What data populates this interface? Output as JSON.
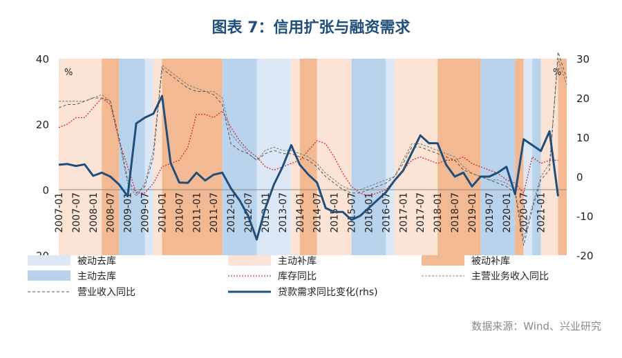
{
  "title": "图表 7：信用扩张与融资需求",
  "source": "数据来源：Wind、兴业研究",
  "colors": {
    "passive_destock": "#dce8f5",
    "active_restock": "#fbe3d6",
    "passive_restock": "#f3b992",
    "active_destock": "#b9d3ec",
    "inventory": "#d9282f",
    "main_revenue": "#7f7f7f",
    "op_revenue": "#555555",
    "loan": "#1f4e79"
  },
  "chart_data": {
    "type": "line",
    "left_unit": "%",
    "right_unit": "%",
    "ylim_left": [
      -20,
      40
    ],
    "ylim_right": [
      -20,
      30
    ],
    "y_ticks_left": [
      "40",
      "20",
      "0",
      "-20"
    ],
    "y_ticks_right": [
      "30",
      "20",
      "10",
      "0",
      "-10",
      "-20"
    ],
    "x_tick_labels": [
      "2007-01",
      "2007-07",
      "2008-01",
      "2008-07",
      "2009-01",
      "2009-07",
      "2010-01",
      "2010-07",
      "2011-01",
      "2011-07",
      "2012-01",
      "2012-07",
      "2013-01",
      "2013-07",
      "2014-01",
      "2014-07",
      "2015-01",
      "2015-07",
      "2016-01",
      "2016-07",
      "2017-01",
      "2017-07",
      "2018-01",
      "2018-07",
      "2019-01",
      "2019-07",
      "2020-01",
      "2020-07",
      "2021-01"
    ],
    "x_range_quarters": [
      0,
      59
    ],
    "regimes": [
      {
        "from": 0,
        "to": 5,
        "type": "active_restock"
      },
      {
        "from": 5,
        "to": 7,
        "type": "passive_restock"
      },
      {
        "from": 7,
        "to": 10,
        "type": "active_destock"
      },
      {
        "from": 10,
        "to": 11,
        "type": "passive_destock"
      },
      {
        "from": 11,
        "to": 12,
        "type": "active_restock"
      },
      {
        "from": 12,
        "to": 19,
        "type": "passive_restock"
      },
      {
        "from": 19,
        "to": 23,
        "type": "active_destock"
      },
      {
        "from": 23,
        "to": 27,
        "type": "passive_destock"
      },
      {
        "from": 27,
        "to": 28,
        "type": "active_restock"
      },
      {
        "from": 28,
        "to": 30,
        "type": "passive_restock"
      },
      {
        "from": 30,
        "to": 34,
        "type": "active_restock"
      },
      {
        "from": 34,
        "to": 38,
        "type": "active_destock"
      },
      {
        "from": 38,
        "to": 39,
        "type": "passive_destock"
      },
      {
        "from": 39,
        "to": 44,
        "type": "active_restock"
      },
      {
        "from": 44,
        "to": 49,
        "type": "passive_restock"
      },
      {
        "from": 49,
        "to": 53,
        "type": "active_destock"
      },
      {
        "from": 53,
        "to": 54,
        "type": "passive_restock"
      },
      {
        "from": 54,
        "to": 55,
        "type": "passive_destock"
      },
      {
        "from": 55,
        "to": 56,
        "type": "active_destock"
      },
      {
        "from": 56,
        "to": 58,
        "type": "active_restock"
      },
      {
        "from": 58,
        "to": 59,
        "type": "passive_restock"
      }
    ],
    "series": [
      {
        "name": "库存同比",
        "axis": "left",
        "style": "dotted",
        "color_key": "inventory",
        "points": [
          [
            0,
            19
          ],
          [
            1,
            20
          ],
          [
            2,
            22
          ],
          [
            3,
            22
          ],
          [
            4,
            25
          ],
          [
            5,
            28
          ],
          [
            6,
            26
          ],
          [
            7,
            15
          ],
          [
            8,
            7
          ],
          [
            9,
            -1
          ],
          [
            10,
            -1
          ],
          [
            11,
            2
          ],
          [
            12,
            7
          ],
          [
            13,
            8
          ],
          [
            14,
            9
          ],
          [
            15,
            13
          ],
          [
            16,
            23
          ],
          [
            17,
            23
          ],
          [
            18,
            22
          ],
          [
            19,
            24
          ],
          [
            20,
            19
          ],
          [
            21,
            15
          ],
          [
            22,
            12
          ],
          [
            23,
            10
          ],
          [
            24,
            7
          ],
          [
            25,
            6
          ],
          [
            26,
            7
          ],
          [
            27,
            8
          ],
          [
            28,
            9
          ],
          [
            29,
            12
          ],
          [
            30,
            15
          ],
          [
            31,
            14
          ],
          [
            32,
            10
          ],
          [
            33,
            5
          ],
          [
            34,
            1
          ],
          [
            35,
            -1
          ],
          [
            36,
            -2
          ],
          [
            37,
            -1
          ],
          [
            38,
            0
          ],
          [
            39,
            3
          ],
          [
            40,
            6
          ],
          [
            41,
            9
          ],
          [
            42,
            10
          ],
          [
            43,
            9
          ],
          [
            44,
            8
          ],
          [
            45,
            9
          ],
          [
            46,
            9
          ],
          [
            47,
            10
          ],
          [
            48,
            8
          ],
          [
            49,
            7
          ],
          [
            50,
            6
          ],
          [
            51,
            5
          ],
          [
            52,
            3
          ],
          [
            53,
            2
          ],
          [
            54,
            -1
          ],
          [
            55,
            10
          ],
          [
            56,
            8
          ],
          [
            57,
            9
          ],
          [
            58,
            9
          ]
        ]
      },
      {
        "name": "主营业务收入同比",
        "axis": "left",
        "style": "dashed-fine",
        "color_key": "main_revenue",
        "points": [
          [
            0,
            27
          ],
          [
            1,
            27
          ],
          [
            2,
            27
          ],
          [
            3,
            27
          ],
          [
            4,
            28
          ],
          [
            5,
            29
          ],
          [
            6,
            27
          ],
          [
            7,
            15
          ],
          [
            8,
            2
          ],
          [
            9,
            -2
          ],
          [
            10,
            2
          ],
          [
            11,
            12
          ],
          [
            12,
            38
          ],
          [
            13,
            36
          ],
          [
            14,
            34
          ],
          [
            15,
            32
          ],
          [
            16,
            31
          ],
          [
            17,
            30
          ],
          [
            18,
            30
          ],
          [
            19,
            28
          ],
          [
            20,
            17
          ],
          [
            21,
            14
          ],
          [
            22,
            11
          ],
          [
            23,
            9
          ],
          [
            24,
            12
          ],
          [
            25,
            13
          ],
          [
            26,
            12
          ],
          [
            27,
            12
          ],
          [
            28,
            11
          ],
          [
            29,
            10
          ],
          [
            30,
            8
          ],
          [
            31,
            5
          ],
          [
            32,
            3
          ],
          [
            33,
            1
          ],
          [
            34,
            0
          ],
          [
            35,
            0
          ],
          [
            36,
            1
          ],
          [
            37,
            2
          ],
          [
            38,
            3
          ],
          [
            39,
            4
          ],
          [
            40,
            9
          ],
          [
            41,
            14
          ],
          [
            42,
            14
          ],
          [
            43,
            13
          ],
          [
            44,
            12
          ],
          [
            45,
            11
          ],
          [
            46,
            10
          ],
          [
            47,
            7
          ],
          [
            48,
            5
          ],
          [
            49,
            4
          ],
          [
            50,
            3
          ],
          [
            51,
            3
          ],
          [
            52,
            2
          ],
          [
            53,
            0
          ],
          [
            54,
            -15
          ],
          [
            55,
            -5
          ],
          [
            56,
            4
          ],
          [
            57,
            8
          ],
          [
            58,
            40
          ],
          [
            59,
            32
          ]
        ]
      },
      {
        "name": "营业收入同比",
        "axis": "left",
        "style": "dashed",
        "color_key": "op_revenue",
        "points": [
          [
            0,
            25
          ],
          [
            1,
            26
          ],
          [
            2,
            26
          ],
          [
            3,
            27
          ],
          [
            4,
            28
          ],
          [
            5,
            28
          ],
          [
            6,
            27
          ],
          [
            7,
            16
          ],
          [
            8,
            3
          ],
          [
            9,
            -1
          ],
          [
            10,
            1
          ],
          [
            11,
            10
          ],
          [
            12,
            37
          ],
          [
            13,
            35
          ],
          [
            14,
            33
          ],
          [
            15,
            31
          ],
          [
            16,
            30
          ],
          [
            17,
            30
          ],
          [
            18,
            29
          ],
          [
            19,
            26
          ],
          [
            20,
            14
          ],
          [
            21,
            12
          ],
          [
            22,
            11
          ],
          [
            23,
            9
          ],
          [
            24,
            11
          ],
          [
            25,
            12
          ],
          [
            26,
            11
          ],
          [
            27,
            11
          ],
          [
            28,
            10
          ],
          [
            29,
            9
          ],
          [
            30,
            7
          ],
          [
            31,
            4
          ],
          [
            32,
            2
          ],
          [
            33,
            0
          ],
          [
            34,
            -1
          ],
          [
            35,
            -1
          ],
          [
            36,
            0
          ],
          [
            37,
            1
          ],
          [
            38,
            2
          ],
          [
            39,
            4
          ],
          [
            40,
            8
          ],
          [
            41,
            13
          ],
          [
            42,
            13
          ],
          [
            43,
            12
          ],
          [
            44,
            11
          ],
          [
            45,
            10
          ],
          [
            46,
            9
          ],
          [
            47,
            6
          ],
          [
            48,
            5
          ],
          [
            49,
            4
          ],
          [
            50,
            3
          ],
          [
            51,
            2
          ],
          [
            52,
            1
          ],
          [
            53,
            -1
          ],
          [
            54,
            -17
          ],
          [
            55,
            -6
          ],
          [
            56,
            3
          ],
          [
            57,
            6
          ],
          [
            58,
            42
          ],
          [
            59,
            34
          ]
        ]
      },
      {
        "name": "贷款需求同比变化(rhs)",
        "axis": "right",
        "style": "solid",
        "color_key": "loan",
        "points": [
          [
            0,
            3
          ],
          [
            1,
            3.2
          ],
          [
            2,
            2.7
          ],
          [
            3,
            3.1
          ],
          [
            4,
            0.2
          ],
          [
            5,
            1
          ],
          [
            6,
            0
          ],
          [
            7,
            -2
          ],
          [
            8,
            -5
          ],
          [
            9,
            13.5
          ],
          [
            10,
            15
          ],
          [
            11,
            16
          ],
          [
            12,
            20.5
          ],
          [
            13,
            3.5
          ],
          [
            14,
            -1.5
          ],
          [
            15,
            -1.6
          ],
          [
            16,
            1
          ],
          [
            17,
            -1
          ],
          [
            18,
            0.5
          ],
          [
            19,
            1
          ],
          [
            20,
            -3
          ],
          [
            21,
            -6
          ],
          [
            22,
            -10
          ],
          [
            23,
            -16
          ],
          [
            24,
            -8
          ],
          [
            25,
            -2
          ],
          [
            26,
            2.5
          ],
          [
            27,
            8
          ],
          [
            28,
            3
          ],
          [
            29,
            0.5
          ],
          [
            30,
            -1.5
          ],
          [
            31,
            -8
          ],
          [
            32,
            -9
          ],
          [
            33,
            -9
          ],
          [
            34,
            -11
          ],
          [
            35,
            -10
          ],
          [
            36,
            -8
          ],
          [
            37,
            -6
          ],
          [
            38,
            -4
          ],
          [
            39,
            -1
          ],
          [
            40,
            1.5
          ],
          [
            41,
            6
          ],
          [
            42,
            10.5
          ],
          [
            43,
            8.5
          ],
          [
            44,
            8.5
          ],
          [
            45,
            3
          ],
          [
            46,
            0
          ],
          [
            47,
            1
          ],
          [
            48,
            -2.5
          ],
          [
            49,
            0
          ],
          [
            50,
            0
          ],
          [
            51,
            1
          ],
          [
            52,
            2.5
          ],
          [
            53,
            -4.5
          ],
          [
            54,
            9.5
          ],
          [
            55,
            8
          ],
          [
            56,
            6.5
          ],
          [
            57,
            11.5
          ],
          [
            58,
            -5
          ]
        ]
      }
    ]
  },
  "legend": [
    {
      "label": "被动去库",
      "kind": "swatch",
      "color_key": "passive_destock"
    },
    {
      "label": "主动补库",
      "kind": "swatch",
      "color_key": "active_restock"
    },
    {
      "label": "被动补库",
      "kind": "swatch",
      "color_key": "passive_restock"
    },
    {
      "label": "主动去库",
      "kind": "swatch",
      "color_key": "active_destock"
    },
    {
      "label": "库存同比",
      "kind": "dotted",
      "color_key": "inventory"
    },
    {
      "label": "主营业务收入同比",
      "kind": "dashed-fine",
      "color_key": "main_revenue"
    },
    {
      "label": "营业收入同比",
      "kind": "dashed",
      "color_key": "op_revenue"
    },
    {
      "label": "贷款需求同比变化(rhs)",
      "kind": "solid",
      "color_key": "loan"
    }
  ]
}
